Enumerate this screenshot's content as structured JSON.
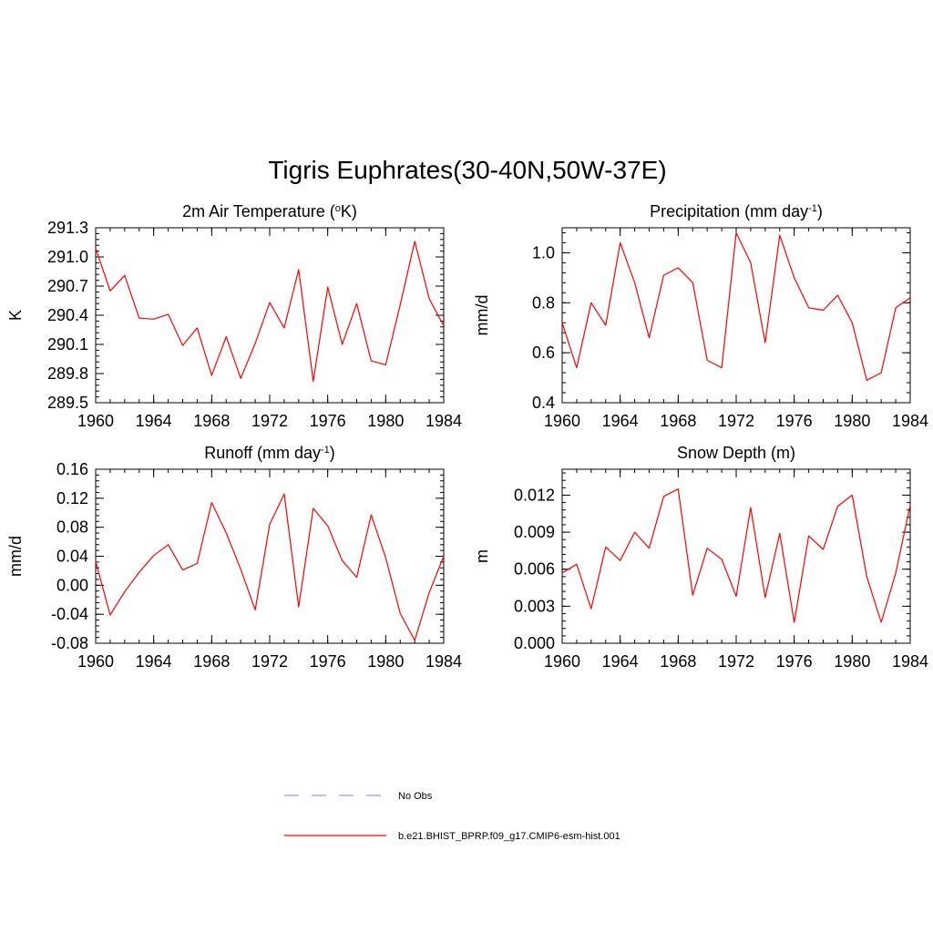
{
  "title": "Tigris Euphrates(30-40N,50W-37E)",
  "legend": {
    "items": [
      {
        "label": "No Obs",
        "style": "dashed",
        "color": "#9999ee"
      },
      {
        "label": "b.e21.BHIST_BPRP.f09_g17.CMIP6-esm-hist.001",
        "style": "solid",
        "color": "#ff0000"
      }
    ]
  },
  "chart_data": [
    {
      "type": "line",
      "title": "2m Air Temperature (",
      "title_sup": "o",
      "title_end": "K)",
      "ylabel": "K",
      "xlim": [
        1960,
        1984
      ],
      "ylim": [
        289.5,
        291.3
      ],
      "xticks": [
        1960,
        1964,
        1968,
        1972,
        1976,
        1980,
        1984
      ],
      "yticks": [
        "289.5",
        "289.8",
        "290.1",
        "290.4",
        "290.7",
        "291.0",
        "291.3"
      ],
      "series": [
        {
          "color": "#ff0000",
          "x": [
            1960,
            1961,
            1962,
            1963,
            1964,
            1965,
            1966,
            1967,
            1968,
            1969,
            1970,
            1971,
            1972,
            1973,
            1974,
            1975,
            1976,
            1977,
            1978,
            1979,
            1980,
            1981,
            1982,
            1983,
            1984
          ],
          "y": [
            291.09,
            290.65,
            290.81,
            290.37,
            290.36,
            290.41,
            290.09,
            290.27,
            289.78,
            290.18,
            289.75,
            290.11,
            290.53,
            290.27,
            290.87,
            289.72,
            290.69,
            290.1,
            290.52,
            289.93,
            289.89,
            290.51,
            291.16,
            290.57,
            290.29
          ]
        }
      ]
    },
    {
      "type": "line",
      "title": "Precipitation (mm day",
      "title_sup": "-1",
      "title_end": ")",
      "ylabel": "mm/d",
      "xlim": [
        1960,
        1984
      ],
      "ylim": [
        0.4,
        1.1
      ],
      "xticks": [
        1960,
        1964,
        1968,
        1972,
        1976,
        1980,
        1984
      ],
      "yticks": [
        "0.4",
        "0.6",
        "0.8",
        "1.0"
      ],
      "series": [
        {
          "color": "#ff0000",
          "x": [
            1960,
            1961,
            1962,
            1963,
            1964,
            1965,
            1966,
            1967,
            1968,
            1969,
            1970,
            1971,
            1972,
            1973,
            1974,
            1975,
            1976,
            1977,
            1978,
            1979,
            1980,
            1981,
            1982,
            1983,
            1984
          ],
          "y": [
            0.72,
            0.54,
            0.8,
            0.71,
            1.04,
            0.88,
            0.66,
            0.91,
            0.94,
            0.88,
            0.57,
            0.54,
            1.08,
            0.96,
            0.64,
            1.07,
            0.9,
            0.78,
            0.77,
            0.83,
            0.72,
            0.49,
            0.52,
            0.78,
            0.82
          ]
        }
      ]
    },
    {
      "type": "line",
      "title": "Runoff (mm day",
      "title_sup": "-1",
      "title_end": ")",
      "ylabel": "mm/d",
      "xlim": [
        1960,
        1984
      ],
      "ylim": [
        -0.08,
        0.16
      ],
      "xticks": [
        1960,
        1964,
        1968,
        1972,
        1976,
        1980,
        1984
      ],
      "yticks": [
        "-0.08",
        "-0.04",
        "0.00",
        "0.04",
        "0.08",
        "0.12",
        "0.16"
      ],
      "series": [
        {
          "color": "#ff0000",
          "x": [
            1960,
            1961,
            1962,
            1963,
            1964,
            1965,
            1966,
            1967,
            1968,
            1969,
            1970,
            1971,
            1972,
            1973,
            1974,
            1975,
            1976,
            1977,
            1978,
            1979,
            1980,
            1981,
            1982,
            1983,
            1984
          ],
          "y": [
            0.033,
            -0.041,
            -0.009,
            0.018,
            0.041,
            0.056,
            0.021,
            0.03,
            0.114,
            0.072,
            0.022,
            -0.034,
            0.084,
            0.126,
            -0.03,
            0.106,
            0.082,
            0.034,
            0.011,
            0.097,
            0.038,
            -0.039,
            -0.076,
            -0.01,
            0.04
          ]
        }
      ]
    },
    {
      "type": "line",
      "title": "Snow Depth (m)",
      "title_sup": "",
      "title_end": "",
      "ylabel": "m",
      "xlim": [
        1960,
        1984
      ],
      "ylim": [
        0.0,
        0.0141
      ],
      "xticks": [
        1960,
        1964,
        1968,
        1972,
        1976,
        1980,
        1984
      ],
      "yticks": [
        "0.000",
        "0.003",
        "0.006",
        "0.009",
        "0.012"
      ],
      "series": [
        {
          "color": "#ff0000",
          "x": [
            1960,
            1961,
            1962,
            1963,
            1964,
            1965,
            1966,
            1967,
            1968,
            1969,
            1970,
            1971,
            1972,
            1973,
            1974,
            1975,
            1976,
            1977,
            1978,
            1979,
            1980,
            1981,
            1982,
            1983,
            1984
          ],
          "y": [
            0.0057,
            0.0064,
            0.0028,
            0.0078,
            0.0067,
            0.009,
            0.0077,
            0.0119,
            0.0125,
            0.0039,
            0.0077,
            0.0068,
            0.0038,
            0.011,
            0.0037,
            0.0089,
            0.0017,
            0.0087,
            0.0076,
            0.0111,
            0.012,
            0.0054,
            0.0017,
            0.0057,
            0.0112
          ]
        }
      ]
    }
  ]
}
